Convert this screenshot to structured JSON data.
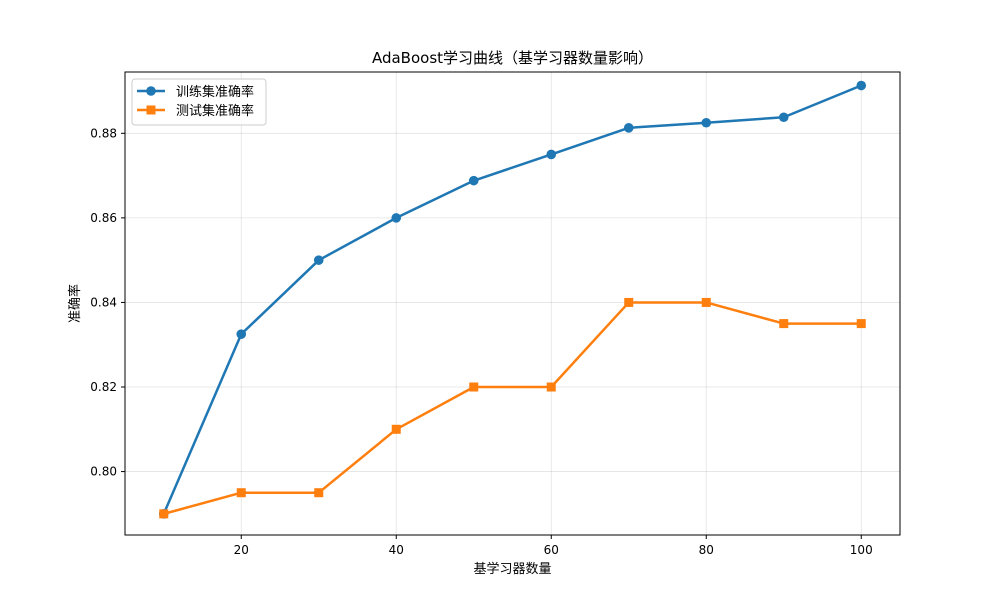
{
  "chart_data": {
    "type": "line",
    "title": "AdaBoost学习曲线（基学习器数量影响）",
    "xlabel": "基学习器数量",
    "ylabel": "准确率",
    "x": [
      10,
      20,
      30,
      40,
      50,
      60,
      70,
      80,
      90,
      100
    ],
    "xlim": [
      5,
      105
    ],
    "ylim": [
      0.785,
      0.8945
    ],
    "xticks": [
      20,
      40,
      60,
      80,
      100
    ],
    "yticks": [
      0.8,
      0.82,
      0.84,
      0.86,
      0.88
    ],
    "grid": true,
    "legend_position": "top-left",
    "series": [
      {
        "name": "训练集准确率",
        "color": "#1f77b4",
        "marker": "circle",
        "values": [
          0.79,
          0.8325,
          0.85,
          0.86,
          0.8688,
          0.875,
          0.8813,
          0.8825,
          0.8838,
          0.8913
        ]
      },
      {
        "name": "测试集准确率",
        "color": "#ff7f0e",
        "marker": "square",
        "values": [
          0.79,
          0.795,
          0.795,
          0.81,
          0.82,
          0.82,
          0.84,
          0.84,
          0.835,
          0.835
        ]
      }
    ]
  }
}
